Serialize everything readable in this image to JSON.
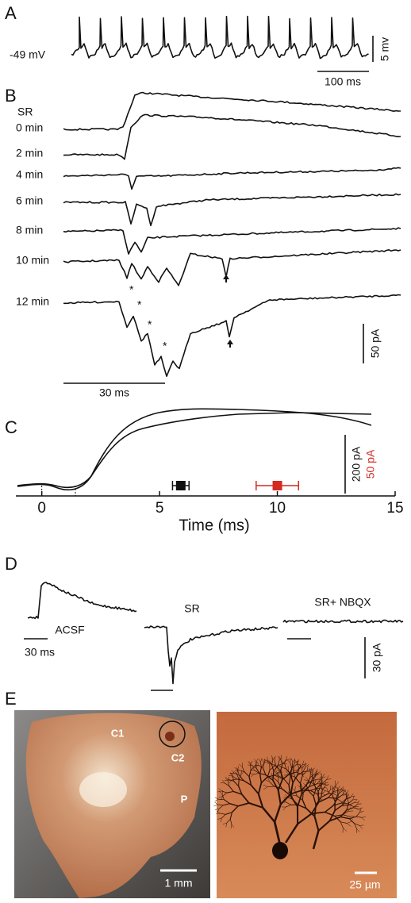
{
  "panel_a": {
    "label": "A",
    "potential": "-49 mV",
    "scale_y": "5 mv",
    "scale_x": "100 ms"
  },
  "panel_b": {
    "label": "B",
    "condition": "SR",
    "times": [
      "0 min",
      "2 min",
      "4 min",
      "6 min",
      "8 min",
      "10 min",
      "12 min"
    ],
    "asterisk": "*",
    "scale_y": "50 pA",
    "scale_x": "30 ms"
  },
  "panel_c": {
    "label": "C",
    "type": "scatter",
    "xlabel": "Time (ms)",
    "xlim": [
      -1.1,
      15
    ],
    "xticks": [
      0,
      5,
      10,
      15
    ],
    "scale_black": "200 pA",
    "scale_red": "50 pA",
    "series": [
      {
        "color": "#111111",
        "values": [
          5.9
        ],
        "errors": [
          0.35
        ]
      },
      {
        "color": "#d42a20",
        "values": [
          10.0
        ],
        "errors": [
          0.9
        ]
      }
    ]
  },
  "panel_d": {
    "label": "D",
    "traces": [
      "ACSF",
      "SR",
      "SR+ NBQX"
    ],
    "scale_x": "30 ms",
    "scale_y": "30 pA"
  },
  "panel_e": {
    "label": "E",
    "regions": [
      "C1",
      "C2",
      "P"
    ],
    "scale_left": "1 mm",
    "scale_right": "25 µm"
  }
}
